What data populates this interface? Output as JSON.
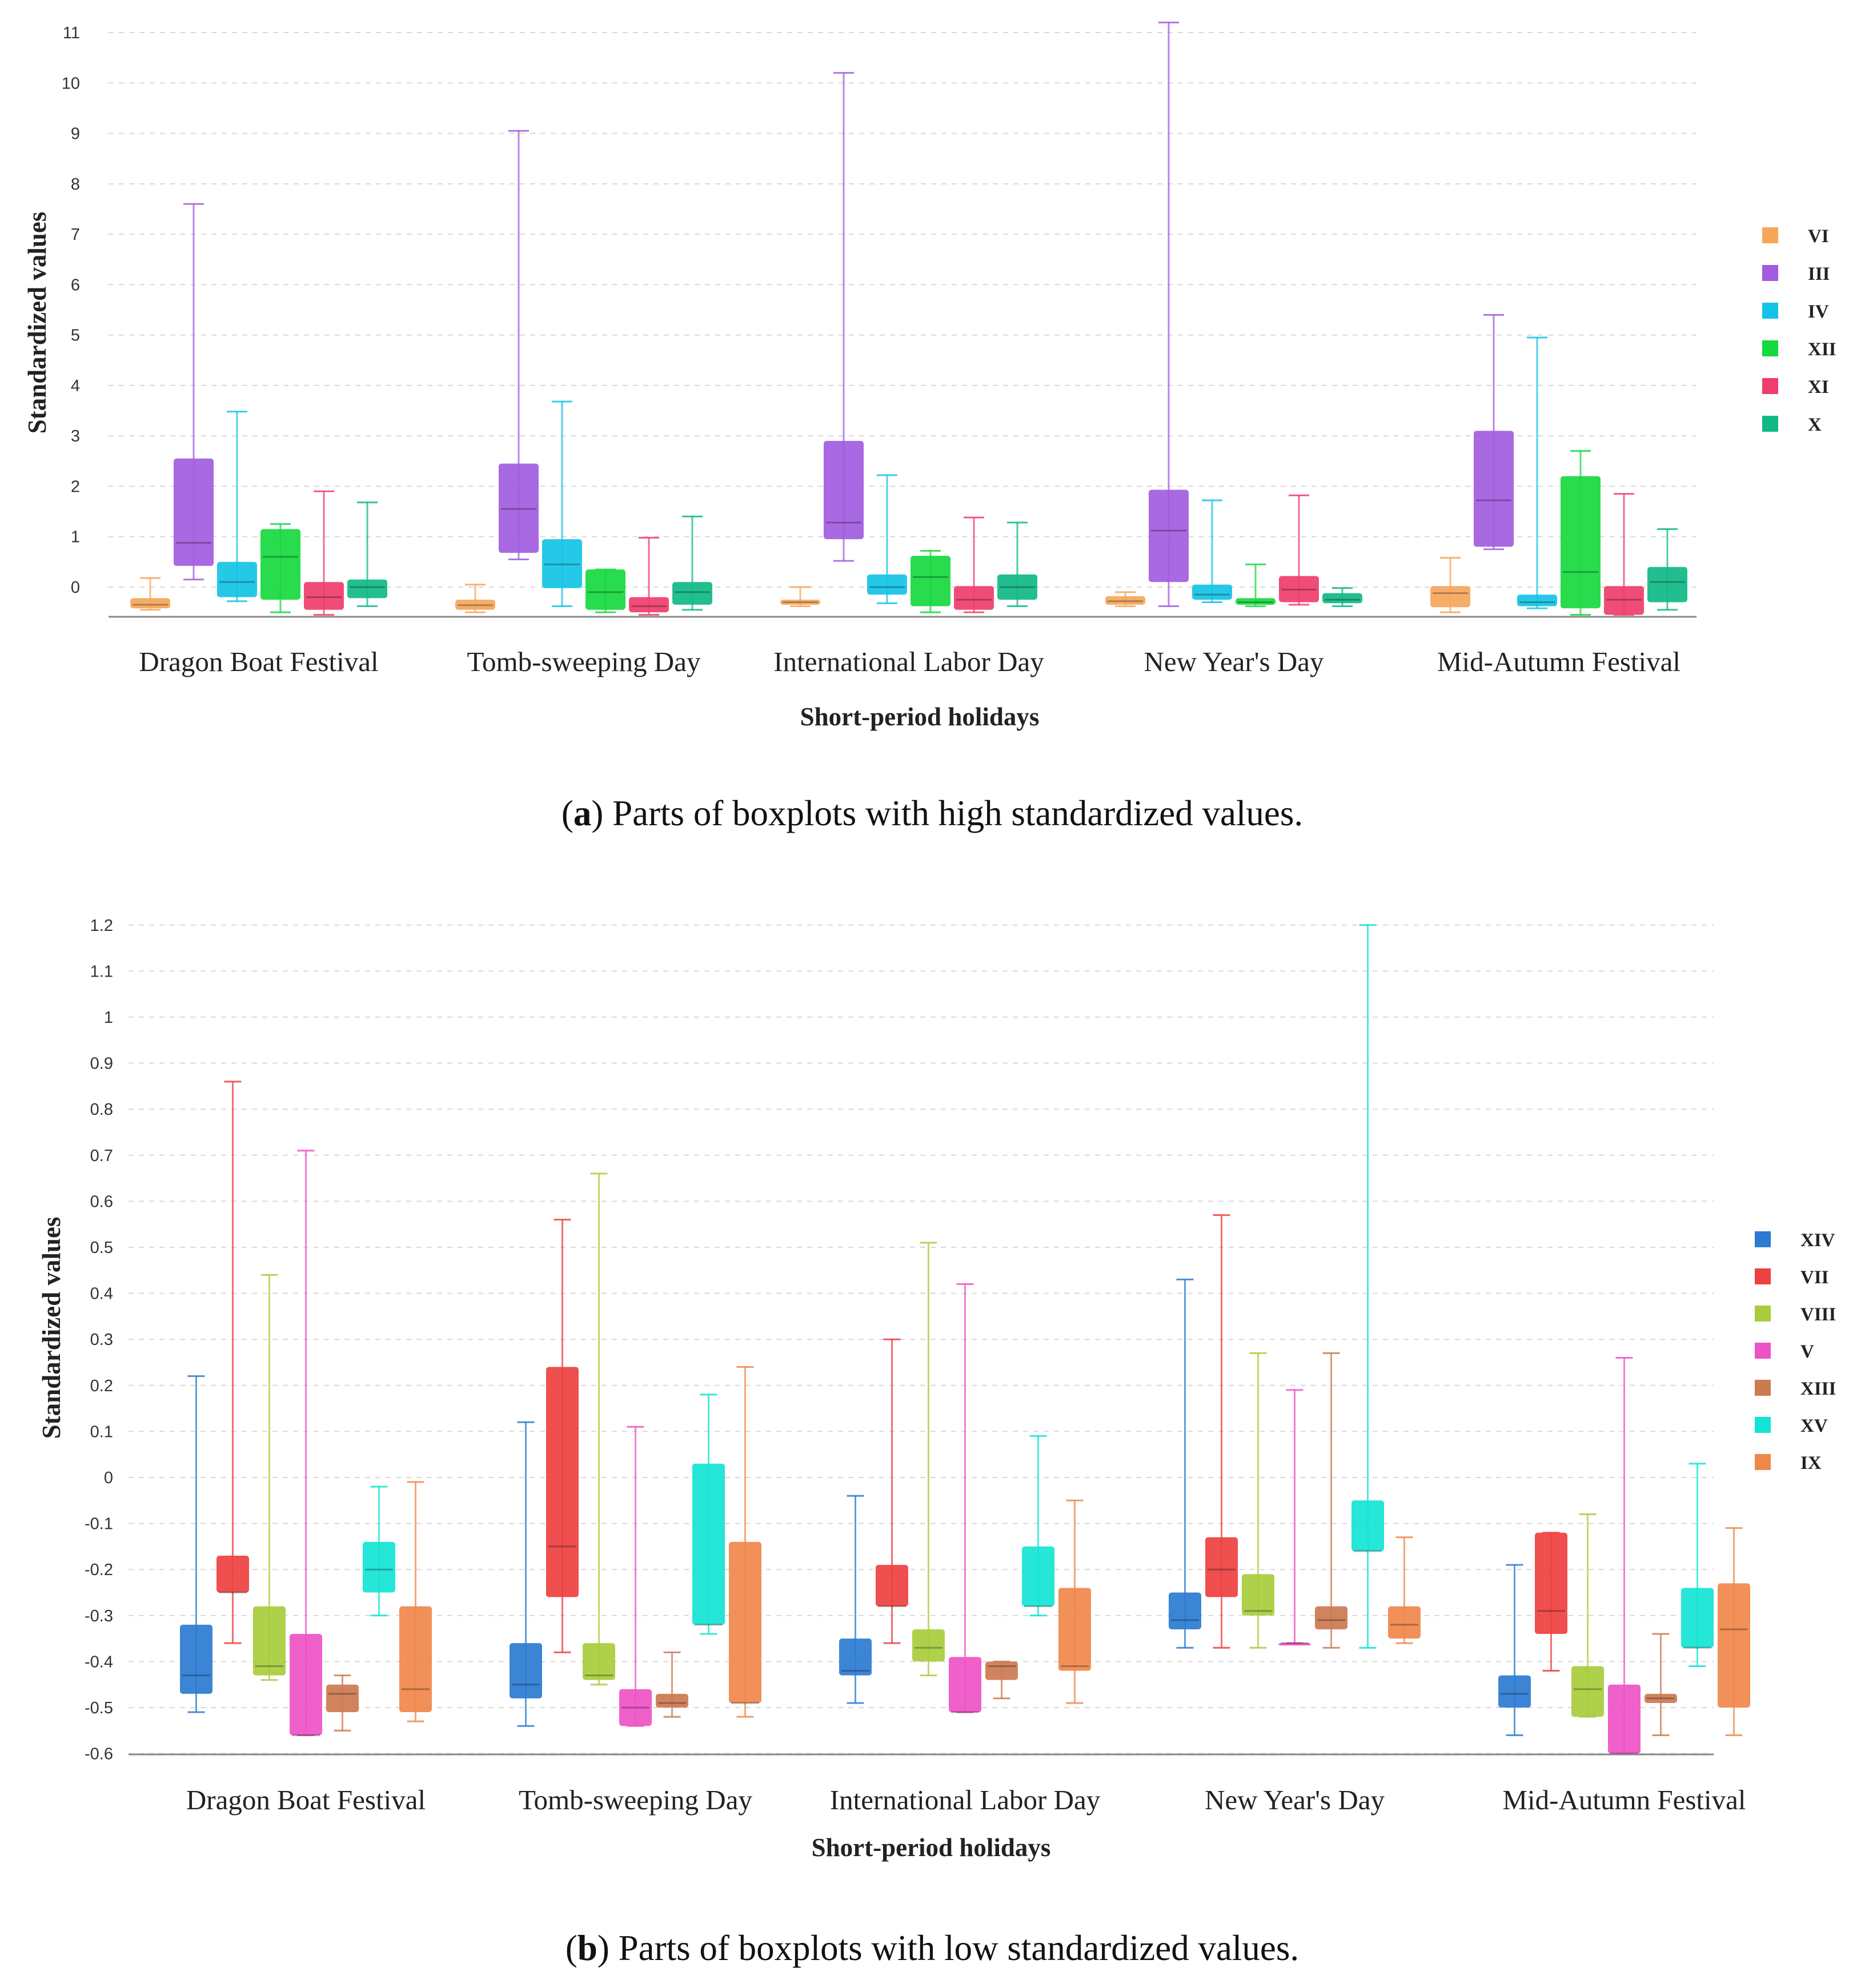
{
  "chart_data": [
    {
      "id": "a",
      "type": "boxplot",
      "caption_letter": "a",
      "caption_text": "Parts of boxplots with high standardized values.",
      "xlabel": "Short-period holidays",
      "ylabel": "Standardized values",
      "ylim": [
        -0.6,
        11.3
      ],
      "yticks": [
        0,
        1,
        2,
        3,
        4,
        5,
        6,
        7,
        8,
        9,
        10,
        11
      ],
      "grid": true,
      "legend_position": "right",
      "categories": [
        "Dragon Boat Festival",
        "Tomb-sweeping Day",
        "International Labor Day",
        "New Year's Day",
        "Mid-Autumn Festival"
      ],
      "series": [
        {
          "name": "VI",
          "color": "#F5A65B",
          "boxes": [
            {
              "min": -0.45,
              "q1": -0.42,
              "median": -0.35,
              "q3": -0.22,
              "max": 0.18
            },
            {
              "min": -0.5,
              "q1": -0.45,
              "median": -0.36,
              "q3": -0.25,
              "max": 0.05
            },
            {
              "min": -0.38,
              "q1": -0.35,
              "median": -0.3,
              "q3": -0.25,
              "max": 0.0
            },
            {
              "min": -0.38,
              "q1": -0.35,
              "median": -0.28,
              "q3": -0.18,
              "max": -0.1
            },
            {
              "min": -0.5,
              "q1": -0.4,
              "median": -0.12,
              "q3": 0.02,
              "max": 0.58
            }
          ]
        },
        {
          "name": "III",
          "color": "#A15CE0",
          "boxes": [
            {
              "min": 0.15,
              "q1": 0.42,
              "median": 0.88,
              "q3": 2.55,
              "max": 7.6
            },
            {
              "min": 0.55,
              "q1": 0.68,
              "median": 1.55,
              "q3": 2.45,
              "max": 9.05
            },
            {
              "min": 0.52,
              "q1": 0.95,
              "median": 1.28,
              "q3": 2.9,
              "max": 10.2
            },
            {
              "min": -0.38,
              "q1": 0.1,
              "median": 1.12,
              "q3": 1.93,
              "max": 11.2
            },
            {
              "min": 0.75,
              "q1": 0.8,
              "median": 1.72,
              "q3": 3.1,
              "max": 5.4
            }
          ]
        },
        {
          "name": "IV",
          "color": "#14C3E6",
          "boxes": [
            {
              "min": -0.28,
              "q1": -0.2,
              "median": 0.1,
              "q3": 0.5,
              "max": 3.48
            },
            {
              "min": -0.38,
              "q1": -0.02,
              "median": 0.45,
              "q3": 0.95,
              "max": 3.68
            },
            {
              "min": -0.32,
              "q1": -0.15,
              "median": 0.0,
              "q3": 0.25,
              "max": 2.22
            },
            {
              "min": -0.3,
              "q1": -0.25,
              "median": -0.15,
              "q3": 0.05,
              "max": 1.72
            },
            {
              "min": -0.42,
              "q1": -0.38,
              "median": -0.3,
              "q3": -0.15,
              "max": 4.95
            }
          ]
        },
        {
          "name": "XII",
          "color": "#16D93F",
          "boxes": [
            {
              "min": -0.5,
              "q1": -0.25,
              "median": 0.6,
              "q3": 1.15,
              "max": 1.25
            },
            {
              "min": -0.5,
              "q1": -0.45,
              "median": -0.1,
              "q3": 0.35,
              "max": 0.35
            },
            {
              "min": -0.5,
              "q1": -0.38,
              "median": 0.2,
              "q3": 0.62,
              "max": 0.72
            },
            {
              "min": -0.38,
              "q1": -0.35,
              "median": -0.3,
              "q3": -0.22,
              "max": 0.45
            },
            {
              "min": -0.55,
              "q1": -0.42,
              "median": 0.3,
              "q3": 2.2,
              "max": 2.7
            }
          ]
        },
        {
          "name": "XI",
          "color": "#EE3E6B",
          "boxes": [
            {
              "min": -0.55,
              "q1": -0.45,
              "median": -0.2,
              "q3": 0.1,
              "max": 1.9
            },
            {
              "min": -0.55,
              "q1": -0.5,
              "median": -0.38,
              "q3": -0.2,
              "max": 0.98
            },
            {
              "min": -0.5,
              "q1": -0.45,
              "median": -0.25,
              "q3": 0.02,
              "max": 1.38
            },
            {
              "min": -0.35,
              "q1": -0.3,
              "median": -0.05,
              "q3": 0.22,
              "max": 1.82
            },
            {
              "min": -0.55,
              "q1": -0.55,
              "median": -0.25,
              "q3": 0.02,
              "max": 1.85
            }
          ]
        },
        {
          "name": "X",
          "color": "#10B886",
          "boxes": [
            {
              "min": -0.38,
              "q1": -0.22,
              "median": 0.0,
              "q3": 0.15,
              "max": 1.68
            },
            {
              "min": -0.45,
              "q1": -0.35,
              "median": -0.1,
              "q3": 0.1,
              "max": 1.4
            },
            {
              "min": -0.38,
              "q1": -0.25,
              "median": 0.0,
              "q3": 0.25,
              "max": 1.28
            },
            {
              "min": -0.38,
              "q1": -0.32,
              "median": -0.25,
              "q3": -0.12,
              "max": -0.02
            },
            {
              "min": -0.45,
              "q1": -0.3,
              "median": 0.1,
              "q3": 0.4,
              "max": 1.15
            }
          ]
        }
      ]
    },
    {
      "id": "b",
      "type": "boxplot",
      "caption_letter": "b",
      "caption_text": "Parts of boxplots with low standardized values.",
      "xlabel": "Short-period holidays",
      "ylabel": "Standardized values",
      "ylim": [
        -0.6,
        1.2
      ],
      "yticks": [
        1.2,
        1.1,
        1,
        0.9,
        0.8,
        0.7,
        0.6,
        0.5,
        0.4,
        0.3,
        0.2,
        0.1,
        0,
        -0.1,
        -0.2,
        -0.3,
        -0.4,
        -0.5,
        -0.6
      ],
      "grid": true,
      "legend_position": "right",
      "categories": [
        "Dragon Boat Festival",
        "Tomb-sweeping Day",
        "International Labor Day",
        "New Year's Day",
        "Mid-Autumn Festival"
      ],
      "series": [
        {
          "name": "XIV",
          "color": "#2B7BD1",
          "boxes": [
            {
              "min": -0.51,
              "q1": -0.47,
              "median": -0.43,
              "q3": -0.32,
              "max": 0.22
            },
            {
              "min": -0.54,
              "q1": -0.48,
              "median": -0.45,
              "q3": -0.36,
              "max": 0.12
            },
            {
              "min": -0.49,
              "q1": -0.43,
              "median": -0.42,
              "q3": -0.35,
              "max": -0.04
            },
            {
              "min": -0.37,
              "q1": -0.33,
              "median": -0.31,
              "q3": -0.25,
              "max": 0.43
            },
            {
              "min": -0.56,
              "q1": -0.5,
              "median": -0.47,
              "q3": -0.43,
              "max": -0.19
            }
          ]
        },
        {
          "name": "VII",
          "color": "#EE4040",
          "boxes": [
            {
              "min": -0.36,
              "q1": -0.25,
              "median": -0.25,
              "q3": -0.17,
              "max": 0.86
            },
            {
              "min": -0.38,
              "q1": -0.26,
              "median": -0.15,
              "q3": 0.24,
              "max": 0.56
            },
            {
              "min": -0.36,
              "q1": -0.28,
              "median": -0.28,
              "q3": -0.19,
              "max": 0.3
            },
            {
              "min": -0.37,
              "q1": -0.26,
              "median": -0.2,
              "q3": -0.13,
              "max": 0.57
            },
            {
              "min": -0.42,
              "q1": -0.34,
              "median": -0.29,
              "q3": -0.12,
              "max": -0.12
            }
          ]
        },
        {
          "name": "VIII",
          "color": "#A8CC3C",
          "boxes": [
            {
              "min": -0.44,
              "q1": -0.43,
              "median": -0.41,
              "q3": -0.28,
              "max": 0.44
            },
            {
              "min": -0.45,
              "q1": -0.44,
              "median": -0.43,
              "q3": -0.36,
              "max": 0.66
            },
            {
              "min": -0.43,
              "q1": -0.4,
              "median": -0.37,
              "q3": -0.33,
              "max": 0.51
            },
            {
              "min": -0.37,
              "q1": -0.3,
              "median": -0.29,
              "q3": -0.21,
              "max": 0.27
            },
            {
              "min": -0.52,
              "q1": -0.52,
              "median": -0.46,
              "q3": -0.41,
              "max": -0.08
            }
          ]
        },
        {
          "name": "V",
          "color": "#EE52C6",
          "boxes": [
            {
              "min": -0.56,
              "q1": -0.56,
              "median": -0.56,
              "q3": -0.34,
              "max": 0.71
            },
            {
              "min": -0.54,
              "q1": -0.54,
              "median": -0.5,
              "q3": -0.46,
              "max": 0.11
            },
            {
              "min": -0.51,
              "q1": -0.51,
              "median": -0.51,
              "q3": -0.39,
              "max": 0.42
            },
            {
              "min": -0.36,
              "q1": -0.36,
              "median": -0.36,
              "q3": -0.36,
              "max": 0.19
            },
            {
              "min": -0.6,
              "q1": -0.6,
              "median": -0.6,
              "q3": -0.45,
              "max": 0.26
            }
          ]
        },
        {
          "name": "XIII",
          "color": "#CC7A50",
          "boxes": [
            {
              "min": -0.55,
              "q1": -0.51,
              "median": -0.47,
              "q3": -0.45,
              "max": -0.43
            },
            {
              "min": -0.52,
              "q1": -0.5,
              "median": -0.49,
              "q3": -0.47,
              "max": -0.38
            },
            {
              "min": -0.48,
              "q1": -0.44,
              "median": -0.41,
              "q3": -0.4,
              "max": -0.4
            },
            {
              "min": -0.37,
              "q1": -0.33,
              "median": -0.31,
              "q3": -0.28,
              "max": 0.27
            },
            {
              "min": -0.56,
              "q1": -0.49,
              "median": -0.48,
              "q3": -0.47,
              "max": -0.34
            }
          ]
        },
        {
          "name": "XV",
          "color": "#12E4D4",
          "boxes": [
            {
              "min": -0.3,
              "q1": -0.25,
              "median": -0.2,
              "q3": -0.14,
              "max": -0.02
            },
            {
              "min": -0.34,
              "q1": -0.32,
              "median": -0.32,
              "q3": 0.03,
              "max": 0.18
            },
            {
              "min": -0.3,
              "q1": -0.28,
              "median": -0.28,
              "q3": -0.15,
              "max": 0.09
            },
            {
              "min": -0.37,
              "q1": -0.16,
              "median": -0.16,
              "q3": -0.05,
              "max": 1.2
            },
            {
              "min": -0.41,
              "q1": -0.37,
              "median": -0.37,
              "q3": -0.24,
              "max": 0.03
            }
          ]
        },
        {
          "name": "IX",
          "color": "#F0874A",
          "boxes": [
            {
              "min": -0.53,
              "q1": -0.51,
              "median": -0.46,
              "q3": -0.28,
              "max": -0.01
            },
            {
              "min": -0.52,
              "q1": -0.49,
              "median": -0.49,
              "q3": -0.14,
              "max": 0.24
            },
            {
              "min": -0.49,
              "q1": -0.42,
              "median": -0.41,
              "q3": -0.24,
              "max": -0.05
            },
            {
              "min": -0.36,
              "q1": -0.35,
              "median": -0.32,
              "q3": -0.28,
              "max": -0.13
            },
            {
              "min": -0.56,
              "q1": -0.5,
              "median": -0.33,
              "q3": -0.23,
              "max": -0.11
            }
          ]
        }
      ]
    }
  ]
}
